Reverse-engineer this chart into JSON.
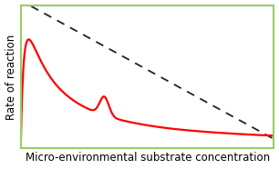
{
  "title": "",
  "xlabel": "Micro-environmental substrate concentration",
  "ylabel": "Rate of reaction",
  "background_color": "#ffffff",
  "border_color": "#99cc66",
  "curve_color": "#ff0000",
  "dashed_color": "#222222",
  "xlim": [
    0,
    1
  ],
  "ylim": [
    0,
    1
  ],
  "xlabel_fontsize": 8.5,
  "ylabel_fontsize": 8.5,
  "dashed_linewidth": 1.3,
  "curve_linewidth": 1.6
}
